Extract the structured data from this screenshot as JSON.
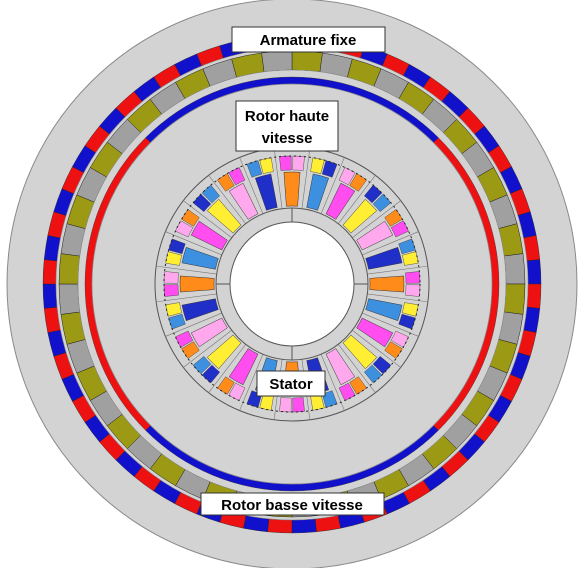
{
  "labels": {
    "armature": "Armature fixe",
    "rotor_hs_line1": "Rotor haute",
    "rotor_hs_line2": "vitesse",
    "stator": "Stator",
    "rotor_ls": "Rotor basse vitesse"
  },
  "colors": {
    "background": "#ffffff",
    "iron": "#d3d3d3",
    "iron_outline": "#8a8a8a",
    "magnet_north": "#ee1111",
    "magnet_south": "#1111cc",
    "pole_piece": "#9c9a14",
    "pole_gap": "#a0a0a0",
    "winding_phase_a": "#ff8c1a",
    "winding_phase_b": "#3d8fe0",
    "winding_phase_c": "#ff4df0",
    "winding_phase_d": "#ffee33",
    "winding_phase_e": "#ffa8ee",
    "winding_phase_f": "#1f2fc8"
  }
}
